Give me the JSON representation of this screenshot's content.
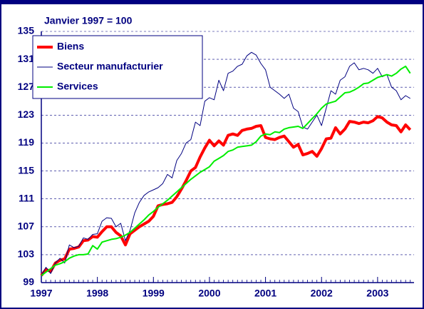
{
  "chart_data": {
    "type": "line",
    "subtitle": "Janvier 1997 = 100",
    "x": [
      1997,
      1997.083,
      1997.167,
      1997.25,
      1997.333,
      1997.417,
      1997.5,
      1997.583,
      1997.667,
      1997.75,
      1997.833,
      1997.917,
      1998,
      1998.083,
      1998.167,
      1998.25,
      1998.333,
      1998.417,
      1998.5,
      1998.583,
      1998.667,
      1998.75,
      1998.833,
      1998.917,
      1999,
      1999.083,
      1999.167,
      1999.25,
      1999.333,
      1999.417,
      1999.5,
      1999.583,
      1999.667,
      1999.75,
      1999.833,
      1999.917,
      2000,
      2000.083,
      2000.167,
      2000.25,
      2000.333,
      2000.417,
      2000.5,
      2000.583,
      2000.667,
      2000.75,
      2000.833,
      2000.917,
      2001,
      2001.083,
      2001.167,
      2001.25,
      2001.333,
      2001.417,
      2001.5,
      2001.583,
      2001.667,
      2001.75,
      2001.833,
      2001.917,
      2002,
      2002.083,
      2002.167,
      2002.25,
      2002.333,
      2002.417,
      2002.5,
      2002.583,
      2002.667,
      2002.75,
      2002.833,
      2002.917,
      2003,
      2003.083,
      2003.167,
      2003.25,
      2003.333,
      2003.417,
      2003.5,
      2003.583
    ],
    "series": [
      {
        "name": "Biens",
        "color": "#ff0000",
        "width": 4,
        "values": [
          100,
          100.9,
          100.6,
          101.8,
          102.2,
          102.4,
          103.8,
          103.9,
          104.1,
          105.0,
          105.1,
          105.6,
          105.5,
          106.3,
          107.0,
          107.0,
          106.2,
          105.7,
          104.4,
          106.0,
          106.5,
          107.0,
          107.4,
          107.8,
          108.5,
          110.0,
          110.2,
          110.3,
          110.5,
          111.3,
          112.4,
          113.6,
          115.0,
          115.5,
          117.0,
          118.3,
          119.4,
          118.6,
          119.3,
          118.7,
          120.1,
          120.3,
          120.1,
          120.8,
          121.0,
          121.1,
          121.4,
          121.5,
          119.8,
          119.6,
          119.5,
          119.8,
          120.0,
          119.2,
          118.4,
          118.8,
          117.3,
          117.5,
          117.8,
          117.1,
          118.2,
          119.6,
          119.7,
          121.2,
          120.3,
          121.0,
          122.1,
          122.0,
          121.8,
          122.0,
          121.9,
          122.2,
          122.8,
          122.6,
          122.0,
          121.6,
          121.5,
          120.6,
          121.6,
          120.9
        ]
      },
      {
        "name": "Secteur manufacturier",
        "color": "#000080",
        "width": 1,
        "values": [
          100,
          101.2,
          100.3,
          101.8,
          102.5,
          101.8,
          104.4,
          104.0,
          104.2,
          105.4,
          105.2,
          105.9,
          106.0,
          107.8,
          108.3,
          108.2,
          107.0,
          107.5,
          105.0,
          106.5,
          109.0,
          110.5,
          111.5,
          112.0,
          112.3,
          112.6,
          113.2,
          114.5,
          114.0,
          116.5,
          117.5,
          119.0,
          119.5,
          122.0,
          121.5,
          125.0,
          125.5,
          125.2,
          128.0,
          126.5,
          129.0,
          129.3,
          130.0,
          130.3,
          131.5,
          132.0,
          131.6,
          130.4,
          129.5,
          127.0,
          126.5,
          126.0,
          125.4,
          126.0,
          124.0,
          123.5,
          121.3,
          121.0,
          122.0,
          123.0,
          121.5,
          124.0,
          126.5,
          126.0,
          128.0,
          128.5,
          130.0,
          130.5,
          129.5,
          129.7,
          129.5,
          129.0,
          129.7,
          128.5,
          128.8,
          127.0,
          126.5,
          125.2,
          125.8,
          125.4
        ]
      },
      {
        "name": "Services",
        "color": "#00ee00",
        "width": 2,
        "values": [
          100,
          100.5,
          101,
          101.5,
          101.7,
          102,
          102.5,
          102.8,
          103,
          103,
          103.1,
          104.3,
          103.8,
          104.8,
          105,
          105.2,
          105.3,
          105.5,
          105.8,
          106.2,
          106.8,
          107.4,
          108,
          108.7,
          109.2,
          109.8,
          110.3,
          110.8,
          111.4,
          112.0,
          112.6,
          113.2,
          113.8,
          114.3,
          114.8,
          115.2,
          115.6,
          116.4,
          116.8,
          117.2,
          117.8,
          118.0,
          118.4,
          118.5,
          118.6,
          118.7,
          119.2,
          120.0,
          120.3,
          120.2,
          120.6,
          120.5,
          121.0,
          121.2,
          121.3,
          121.4,
          121.1,
          121.8,
          122.5,
          123.2,
          124.0,
          124.6,
          124.8,
          125.0,
          125.6,
          126.2,
          126.3,
          126.6,
          127.0,
          127.5,
          127.6,
          128.0,
          128.4,
          128.6,
          128.8,
          128.6,
          129.0,
          129.6,
          130.0,
          129.0
        ]
      }
    ],
    "xlim": [
      1997,
      2003.65
    ],
    "xticks": [
      1997,
      1998,
      1999,
      2000,
      2001,
      2002,
      2003
    ],
    "ylim": [
      99,
      135
    ],
    "yticks": [
      99,
      103,
      107,
      111,
      115,
      119,
      123,
      127,
      131,
      135
    ],
    "grid": true,
    "legend": "upper left"
  }
}
